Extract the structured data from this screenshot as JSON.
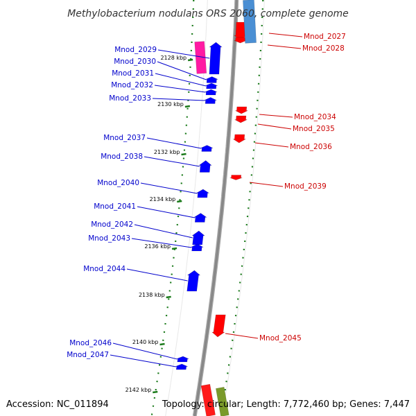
{
  "title": "Methylobacterium nodulans ORS 2060, complete genome",
  "footer": {
    "accession": "Accession: NC_011894",
    "summary": "Topology: circular; Length: 7,772,460 bp; Genes: 7,447"
  },
  "colors": {
    "forward_label": "#0000cc",
    "reverse_label": "#cc0000",
    "forward_gene": "#0000ff",
    "reverse_gene": "#ff0000",
    "backbone": "#888888",
    "tick": "#1a7a1a"
  },
  "ticks": [
    {
      "label": "2128 kbp",
      "kbp": 2128
    },
    {
      "label": "2130 kbp",
      "kbp": 2130
    },
    {
      "label": "2132 kbp",
      "kbp": 2132
    },
    {
      "label": "2134 kbp",
      "kbp": 2134
    },
    {
      "label": "2136 kbp",
      "kbp": 2136
    },
    {
      "label": "2138 kbp",
      "kbp": 2138
    },
    {
      "label": "2140 kbp",
      "kbp": 2140
    },
    {
      "label": "2142 kbp",
      "kbp": 2142
    }
  ],
  "forward_genes": [
    {
      "name": "Mnod_2029"
    },
    {
      "name": "Mnod_2030"
    },
    {
      "name": "Mnod_2031"
    },
    {
      "name": "Mnod_2032"
    },
    {
      "name": "Mnod_2033"
    },
    {
      "name": "Mnod_2037"
    },
    {
      "name": "Mnod_2038"
    },
    {
      "name": "Mnod_2040"
    },
    {
      "name": "Mnod_2041"
    },
    {
      "name": "Mnod_2042"
    },
    {
      "name": "Mnod_2043"
    },
    {
      "name": "Mnod_2044"
    },
    {
      "name": "Mnod_2046"
    },
    {
      "name": "Mnod_2047"
    }
  ],
  "reverse_genes": [
    {
      "name": "Mnod_2027"
    },
    {
      "name": "Mnod_2028"
    },
    {
      "name": "Mnod_2034"
    },
    {
      "name": "Mnod_2035"
    },
    {
      "name": "Mnod_2036"
    },
    {
      "name": "Mnod_2039"
    },
    {
      "name": "Mnod_2045"
    }
  ]
}
